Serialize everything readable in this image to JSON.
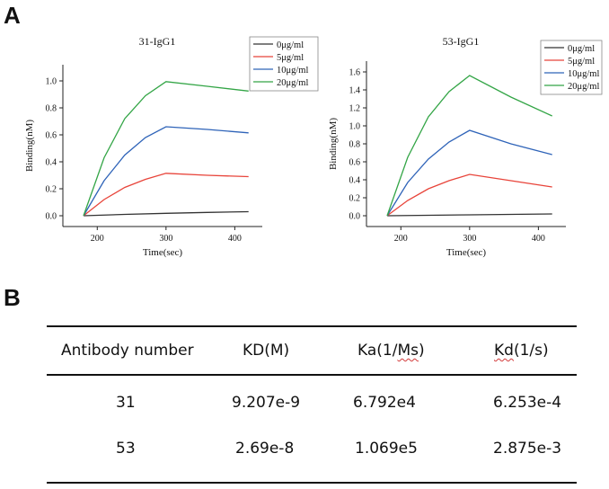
{
  "panels": {
    "a": "A",
    "b": "B"
  },
  "chart_data": [
    {
      "type": "line",
      "title": "31-IgG1",
      "xlabel": "Time(sec)",
      "ylabel": "Binding(nM)",
      "xlim": [
        150,
        440
      ],
      "ylim": [
        -0.08,
        1.12
      ],
      "xticks": [
        200,
        300,
        400
      ],
      "yticks": [
        0.0,
        0.2,
        0.4,
        0.6,
        0.8,
        1.0
      ],
      "ytick_labels": [
        "0.0",
        "0.2",
        "0.4",
        "0.6",
        "0.8",
        "1.0"
      ],
      "legend_position": "top-right",
      "series": [
        {
          "name": "0μg/ml",
          "color": "#333333",
          "x": [
            180,
            240,
            300,
            360,
            420
          ],
          "y": [
            0.0,
            0.01,
            0.018,
            0.025,
            0.03
          ]
        },
        {
          "name": "5μg/ml",
          "color": "#e8443a",
          "x": [
            180,
            210,
            240,
            270,
            300,
            360,
            420
          ],
          "y": [
            0.0,
            0.12,
            0.21,
            0.27,
            0.315,
            0.3,
            0.29
          ]
        },
        {
          "name": "10μg/ml",
          "color": "#2e63b8",
          "x": [
            180,
            210,
            240,
            270,
            300,
            360,
            420
          ],
          "y": [
            0.0,
            0.26,
            0.45,
            0.58,
            0.66,
            0.64,
            0.615
          ]
        },
        {
          "name": "20μg/ml",
          "color": "#33a546",
          "x": [
            180,
            210,
            240,
            270,
            300,
            360,
            420
          ],
          "y": [
            0.0,
            0.43,
            0.72,
            0.89,
            0.995,
            0.96,
            0.925
          ]
        }
      ]
    },
    {
      "type": "line",
      "title": "53-IgG1",
      "xlabel": "Time(sec)",
      "ylabel": "Binding(nM)",
      "xlim": [
        150,
        440
      ],
      "ylim": [
        -0.12,
        1.72
      ],
      "xticks": [
        200,
        300,
        400
      ],
      "yticks": [
        0.0,
        0.2,
        0.4,
        0.6,
        0.8,
        1.0,
        1.2,
        1.4,
        1.6
      ],
      "ytick_labels": [
        "0.0",
        "0.2",
        "0.4",
        "0.6",
        "0.8",
        "1.0",
        "1.2",
        "1.4",
        "1.6"
      ],
      "legend_position": "top-right",
      "series": [
        {
          "name": "0μg/ml",
          "color": "#333333",
          "x": [
            180,
            240,
            300,
            360,
            420
          ],
          "y": [
            0.0,
            0.005,
            0.01,
            0.015,
            0.02
          ]
        },
        {
          "name": "5μg/ml",
          "color": "#e8443a",
          "x": [
            180,
            210,
            240,
            270,
            300,
            360,
            420
          ],
          "y": [
            0.0,
            0.17,
            0.3,
            0.39,
            0.46,
            0.39,
            0.32
          ]
        },
        {
          "name": "10μg/ml",
          "color": "#2e63b8",
          "x": [
            180,
            210,
            240,
            270,
            300,
            360,
            420
          ],
          "y": [
            0.0,
            0.37,
            0.63,
            0.82,
            0.95,
            0.8,
            0.68
          ]
        },
        {
          "name": "20μg/ml",
          "color": "#33a546",
          "x": [
            180,
            210,
            240,
            270,
            300,
            360,
            420
          ],
          "y": [
            0.0,
            0.65,
            1.1,
            1.38,
            1.56,
            1.32,
            1.11
          ]
        }
      ]
    }
  ],
  "table": {
    "headers": [
      "Antibody number",
      "KD(M)",
      "Ka(1/Ms)",
      "Kd(1/s)"
    ],
    "rows": [
      [
        "31",
        "9.207e-9",
        "6.792e4",
        "6.253e-4"
      ],
      [
        "53",
        "2.69e-8",
        "1.069e5",
        "2.875e-3"
      ]
    ]
  }
}
